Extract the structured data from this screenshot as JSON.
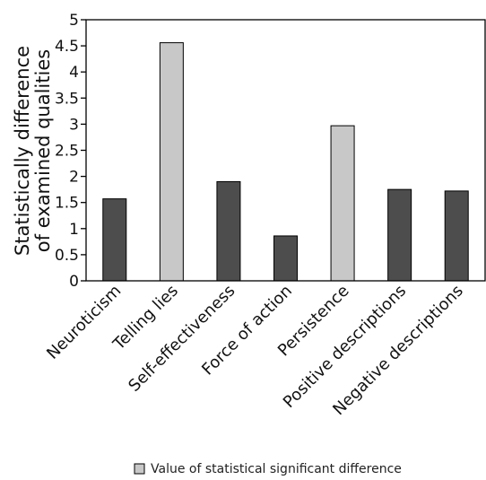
{
  "chart_data": {
    "type": "bar",
    "categories": [
      "Neuroticism",
      "Telling lies",
      "Self-effectiveness",
      "Force of action",
      "Persistence",
      "Positive descriptions",
      "Negative descriptions"
    ],
    "values": [
      1.57,
      4.56,
      1.9,
      0.86,
      2.97,
      1.75,
      1.72
    ],
    "significant": [
      false,
      true,
      false,
      false,
      true,
      false,
      false
    ],
    "ylabel_line1": "Statistically difference",
    "ylabel_line2": "of examined qualities",
    "ylim": [
      0,
      5
    ],
    "yticks": [
      "0",
      "0.5",
      "1",
      "1.5",
      "2",
      "2.5",
      "3",
      "3.5",
      "4",
      "4.5",
      "5"
    ],
    "grid": false,
    "legend": {
      "position": "bottom",
      "entries": [
        {
          "label": "Value of statistical significant difference",
          "color": "#c8c8c8"
        }
      ]
    },
    "colors": {
      "default_bar": "#4d4d4d",
      "significant_bar": "#c8c8c8",
      "bar_border": "#000000"
    }
  }
}
